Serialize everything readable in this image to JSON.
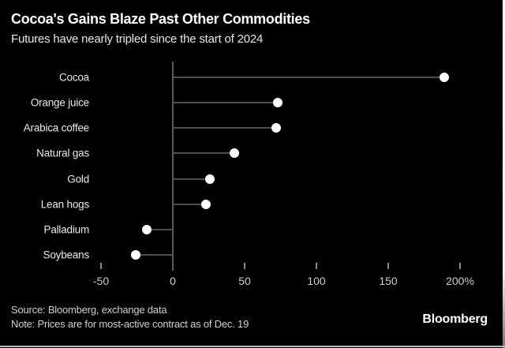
{
  "header": {
    "title": "Cocoa's Gains Blaze Past Other Commodities",
    "subtitle": "Futures have nearly tripled since the start of 2024"
  },
  "footer": {
    "source": "Source: Bloomberg, exchange data",
    "note": "Note: Prices are for most-active contract as of Dec. 19",
    "brand": "Bloomberg"
  },
  "chart_data": {
    "type": "scatter",
    "variant": "horizontal-lollipop",
    "title": "Cocoa's Gains Blaze Past Other Commodities",
    "subtitle": "Futures have nearly tripled since the start of 2024",
    "categories": [
      "Cocoa",
      "Orange juice",
      "Arabica coffee",
      "Natural gas",
      "Gold",
      "Lean hogs",
      "Palladium",
      "Soybeans"
    ],
    "values": [
      189,
      73,
      72,
      43,
      26,
      23,
      -18,
      -26
    ],
    "unit": "%",
    "xlabel": "",
    "ylabel": "",
    "xlim": [
      -75,
      230
    ],
    "x_ticks": [
      {
        "value": -50,
        "label": "-50"
      },
      {
        "value": 0,
        "label": "0"
      },
      {
        "value": 50,
        "label": "50"
      },
      {
        "value": 100,
        "label": "100"
      },
      {
        "value": 150,
        "label": "150"
      },
      {
        "value": 200,
        "label": "200%"
      }
    ],
    "grid": false,
    "legend": "none",
    "colors": {
      "background": "#000000",
      "dot": "#ffffff",
      "stem": "#4d4d4d",
      "axis": "#5a5a5a",
      "tick": "#8a8a8a",
      "tick_label": "#cccccc",
      "category_label": "#e8e8e8"
    }
  }
}
